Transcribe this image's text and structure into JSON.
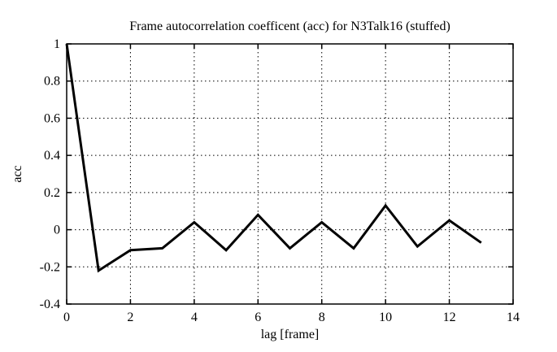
{
  "chart_data": {
    "type": "line",
    "title": "Frame autocorrelation coefficent (acc) for N3Talk16 (stuffed)",
    "xlabel": "lag [frame]",
    "ylabel": "acc",
    "x": [
      0,
      1,
      2,
      3,
      4,
      5,
      6,
      7,
      8,
      9,
      10,
      11,
      12,
      13
    ],
    "values": [
      1.0,
      -0.22,
      -0.11,
      -0.1,
      0.04,
      -0.11,
      0.08,
      -0.1,
      0.04,
      -0.1,
      0.13,
      -0.09,
      0.05,
      -0.07
    ],
    "xlim": [
      0,
      14
    ],
    "ylim": [
      -0.4,
      1
    ],
    "xticks": {
      "values": [
        0,
        2,
        4,
        6,
        8,
        10,
        12,
        14
      ],
      "labels": [
        "0",
        "2",
        "4",
        "6",
        "8",
        "10",
        "12",
        "14"
      ]
    },
    "yticks": {
      "values": [
        1,
        0.8,
        0.6,
        0.4,
        0.2,
        0,
        -0.2,
        -0.4
      ],
      "labels": [
        "1",
        "0.8",
        "0.6",
        "0.4",
        "0.2",
        "0",
        "-0.2",
        "-0.4"
      ]
    },
    "grid": true,
    "legend": "none",
    "line_color": "#000000",
    "grid_color": "#000000",
    "background": "#ffffff"
  }
}
